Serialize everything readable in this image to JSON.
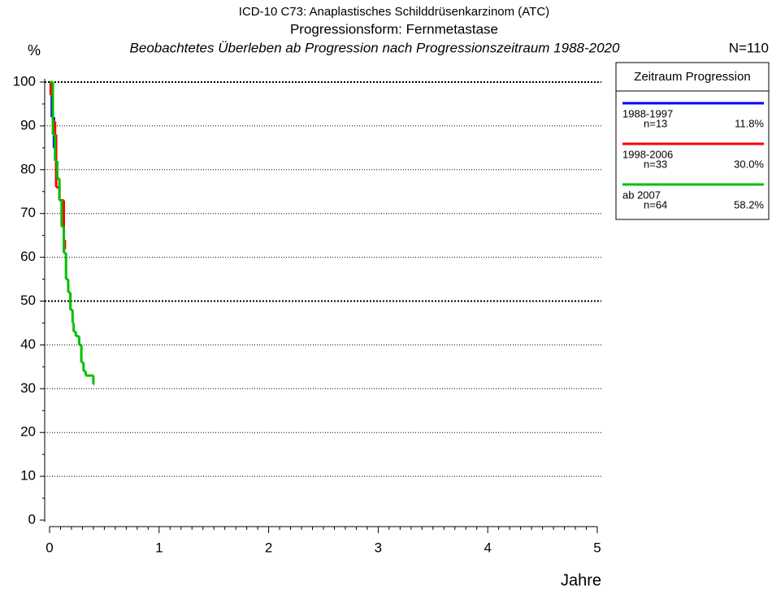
{
  "chart_data": {
    "type": "step",
    "title": "ICD-10 C73: Anaplastisches Schilddrüsenkarzinom (ATC)",
    "subtitle": "Progressionsform: Fernmetastase",
    "description": "Beobachtetes Überleben ab Progression nach Progressionszeitraum 1988-2020",
    "total_label": "N=110",
    "y_label": "%",
    "x_label": "Jahre",
    "legend_title": "Zeitraum Progression",
    "xlim": [
      0,
      5
    ],
    "xticks": [
      0,
      1,
      2,
      3,
      4,
      5
    ],
    "ylim": [
      0,
      100
    ],
    "yticks": [
      0,
      10,
      20,
      30,
      40,
      50,
      60,
      70,
      80,
      90,
      100
    ],
    "grid": true,
    "series": [
      {
        "name": "1988-1997",
        "n_label": "n=13",
        "share_label": "11.8%",
        "color": "#0000ff",
        "x": [
          0,
          0.02,
          0.04
        ],
        "values": [
          100,
          92,
          85
        ]
      },
      {
        "name": "1998-2006",
        "n_label": "n=33",
        "share_label": "30.0%",
        "color": "#ff0000",
        "x": [
          0,
          0.01,
          0.03,
          0.05,
          0.06,
          0.09,
          0.13,
          0.14
        ],
        "values": [
          100,
          97,
          91,
          88,
          76,
          73,
          64,
          62
        ]
      },
      {
        "name": "ab 2007",
        "n_label": "n=64",
        "share_label": "58.2%",
        "color": "#00c000",
        "x": [
          0,
          0.03,
          0.05,
          0.07,
          0.09,
          0.11,
          0.13,
          0.15,
          0.17,
          0.19,
          0.21,
          0.22,
          0.24,
          0.27,
          0.29,
          0.31,
          0.33,
          0.39,
          0.4
        ],
        "values": [
          100,
          88,
          82,
          78,
          73,
          67,
          61,
          55,
          52,
          48,
          45,
          43,
          42,
          40,
          36,
          34,
          33,
          33,
          31
        ]
      }
    ]
  }
}
